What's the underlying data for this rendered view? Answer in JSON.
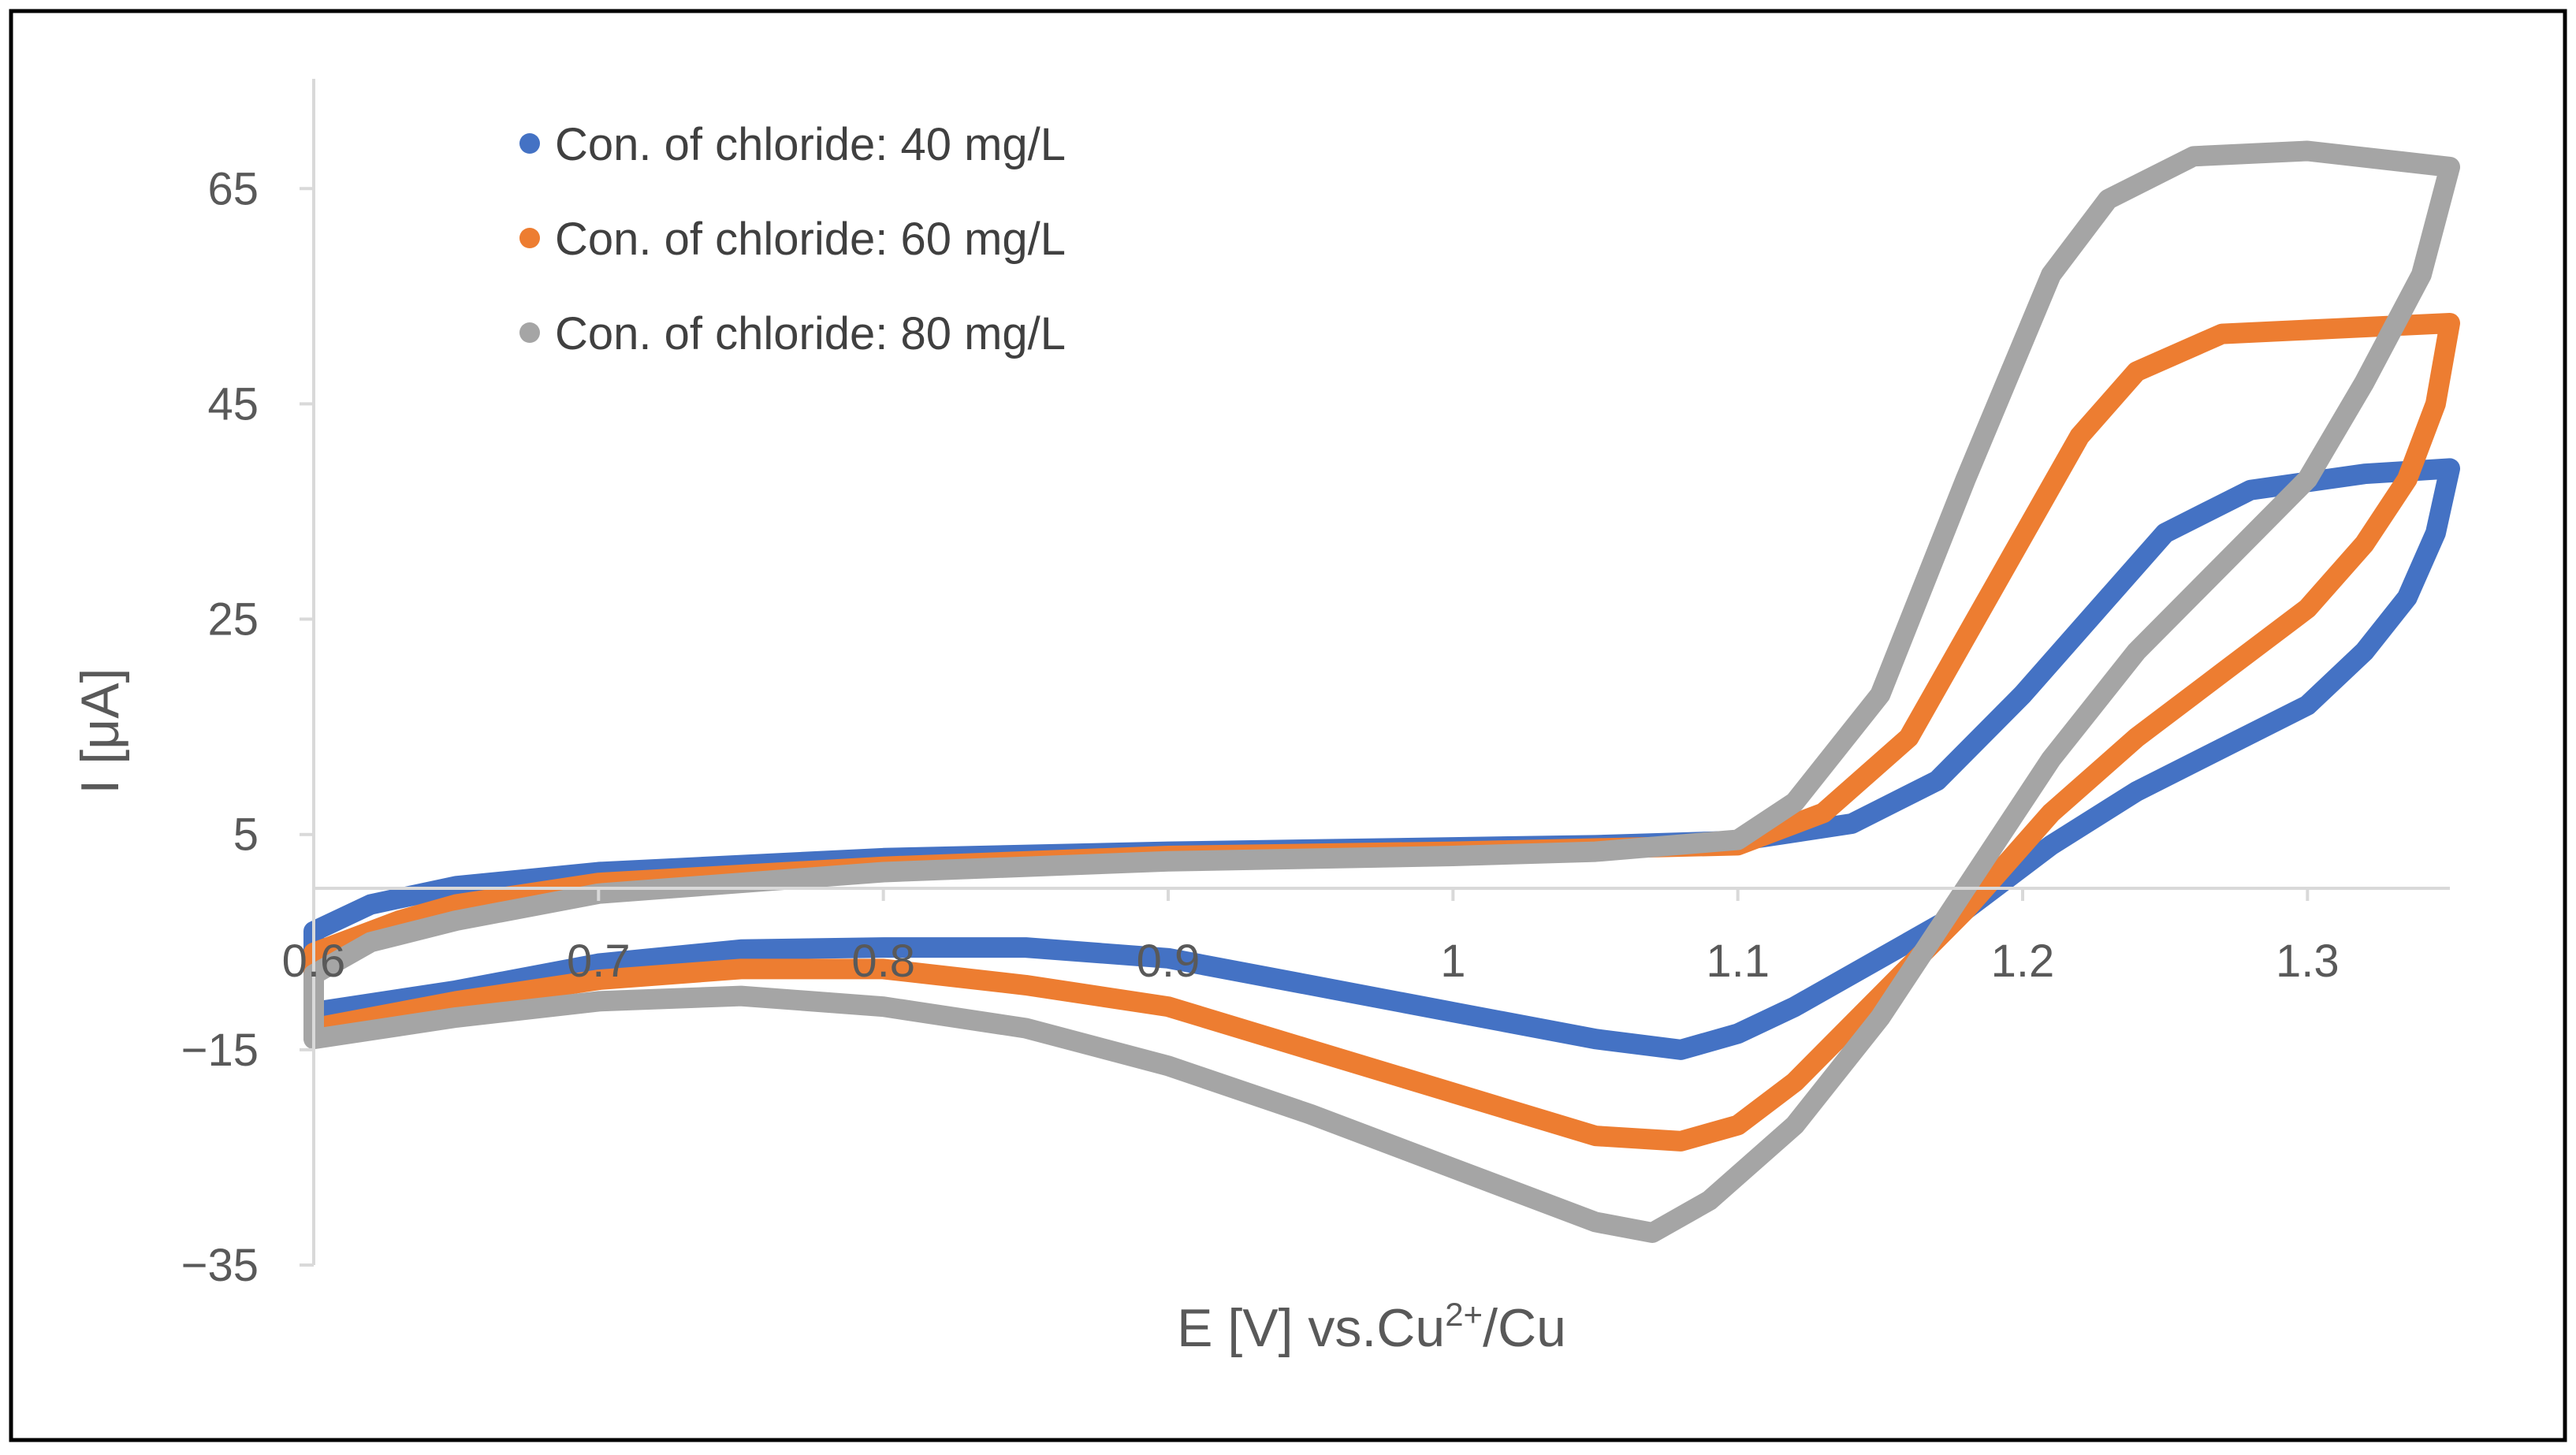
{
  "chart_data": {
    "type": "line",
    "title": "",
    "xlabel_main": "E [V] vs.Cu",
    "xlabel_sup": "2+",
    "xlabel_tail": "/Cu",
    "ylabel": "I [μA]",
    "xlim": [
      0.6,
      1.35
    ],
    "ylim": [
      -35,
      73
    ],
    "x_ticks": [
      0.6,
      0.7,
      0.8,
      0.9,
      1.0,
      1.1,
      1.2,
      1.3
    ],
    "x_tick_labels": [
      "0.6",
      "0.7",
      "0.8",
      "0.9",
      "1",
      "1.1",
      "1.2",
      "1.3"
    ],
    "y_ticks": [
      65,
      45,
      25,
      5,
      -15,
      -35
    ],
    "y_tick_labels": [
      "65",
      "45",
      "25",
      "5",
      "−15",
      "−35"
    ],
    "x_axis_crosses_at_y": 0,
    "grid": false,
    "legend_position": "top-left",
    "series": [
      {
        "name": "Con. of chloride:  40 mg/L",
        "color": "#4472C4",
        "forward": [
          [
            0.6,
            -4
          ],
          [
            0.62,
            -1.5
          ],
          [
            0.65,
            0.2
          ],
          [
            0.7,
            1.5
          ],
          [
            0.8,
            2.8
          ],
          [
            0.9,
            3.4
          ],
          [
            1.0,
            3.8
          ],
          [
            1.05,
            4.0
          ],
          [
            1.1,
            4.4
          ],
          [
            1.14,
            6
          ],
          [
            1.17,
            10
          ],
          [
            1.2,
            18
          ],
          [
            1.23,
            27
          ],
          [
            1.25,
            33
          ],
          [
            1.28,
            37
          ],
          [
            1.32,
            38.5
          ],
          [
            1.35,
            39
          ]
        ],
        "reverse": [
          [
            1.35,
            39
          ],
          [
            1.345,
            33
          ],
          [
            1.335,
            27
          ],
          [
            1.32,
            22
          ],
          [
            1.3,
            17
          ],
          [
            1.27,
            13
          ],
          [
            1.24,
            9
          ],
          [
            1.21,
            4
          ],
          [
            1.18,
            -2
          ],
          [
            1.15,
            -6.5
          ],
          [
            1.12,
            -11
          ],
          [
            1.1,
            -13.5
          ],
          [
            1.08,
            -15
          ],
          [
            1.05,
            -14
          ],
          [
            1.0,
            -11.5
          ],
          [
            0.95,
            -9
          ],
          [
            0.9,
            -6.5
          ],
          [
            0.85,
            -5.5
          ],
          [
            0.8,
            -5.5
          ],
          [
            0.75,
            -5.7
          ],
          [
            0.7,
            -7
          ],
          [
            0.65,
            -9.5
          ],
          [
            0.6,
            -11.5
          ]
        ]
      },
      {
        "name": "Con. of chloride:  60 mg/L",
        "color": "#ED7D31",
        "forward": [
          [
            0.6,
            -6
          ],
          [
            0.63,
            -3
          ],
          [
            0.65,
            -1.5
          ],
          [
            0.7,
            0.5
          ],
          [
            0.8,
            2
          ],
          [
            0.9,
            3
          ],
          [
            1.0,
            3.4
          ],
          [
            1.05,
            3.7
          ],
          [
            1.1,
            4
          ],
          [
            1.13,
            7
          ],
          [
            1.16,
            14
          ],
          [
            1.19,
            28
          ],
          [
            1.22,
            42
          ],
          [
            1.24,
            48
          ],
          [
            1.27,
            51.5
          ],
          [
            1.31,
            52
          ],
          [
            1.35,
            52.5
          ]
        ],
        "reverse": [
          [
            1.35,
            52.5
          ],
          [
            1.345,
            45
          ],
          [
            1.335,
            38
          ],
          [
            1.32,
            32
          ],
          [
            1.3,
            26
          ],
          [
            1.27,
            20
          ],
          [
            1.24,
            14
          ],
          [
            1.21,
            7
          ],
          [
            1.18,
            -2
          ],
          [
            1.15,
            -10
          ],
          [
            1.12,
            -18
          ],
          [
            1.1,
            -22
          ],
          [
            1.08,
            -23.5
          ],
          [
            1.05,
            -23
          ],
          [
            1.0,
            -19
          ],
          [
            0.95,
            -15
          ],
          [
            0.9,
            -11
          ],
          [
            0.85,
            -9
          ],
          [
            0.8,
            -7.5
          ],
          [
            0.75,
            -7.5
          ],
          [
            0.7,
            -8.5
          ],
          [
            0.65,
            -10.5
          ],
          [
            0.6,
            -13
          ]
        ]
      },
      {
        "name": "Con. of chloride:  80 mg/L",
        "color": "#A5A5A5",
        "forward": [
          [
            0.6,
            -8
          ],
          [
            0.62,
            -5
          ],
          [
            0.65,
            -3
          ],
          [
            0.7,
            -0.5
          ],
          [
            0.8,
            1.5
          ],
          [
            0.9,
            2.5
          ],
          [
            1.0,
            3
          ],
          [
            1.05,
            3.4
          ],
          [
            1.1,
            4.5
          ],
          [
            1.12,
            8
          ],
          [
            1.15,
            18
          ],
          [
            1.18,
            38
          ],
          [
            1.21,
            57
          ],
          [
            1.23,
            64
          ],
          [
            1.26,
            68
          ],
          [
            1.3,
            68.5
          ],
          [
            1.35,
            67
          ]
        ],
        "reverse": [
          [
            1.35,
            67
          ],
          [
            1.34,
            57
          ],
          [
            1.32,
            47
          ],
          [
            1.3,
            38
          ],
          [
            1.27,
            30
          ],
          [
            1.24,
            22
          ],
          [
            1.21,
            12
          ],
          [
            1.18,
            0
          ],
          [
            1.15,
            -12
          ],
          [
            1.12,
            -22
          ],
          [
            1.09,
            -29
          ],
          [
            1.07,
            -32
          ],
          [
            1.05,
            -31
          ],
          [
            1.0,
            -26
          ],
          [
            0.95,
            -21
          ],
          [
            0.9,
            -16.5
          ],
          [
            0.85,
            -13
          ],
          [
            0.8,
            -11
          ],
          [
            0.75,
            -10
          ],
          [
            0.7,
            -10.5
          ],
          [
            0.65,
            -12
          ],
          [
            0.6,
            -14
          ]
        ]
      }
    ]
  }
}
